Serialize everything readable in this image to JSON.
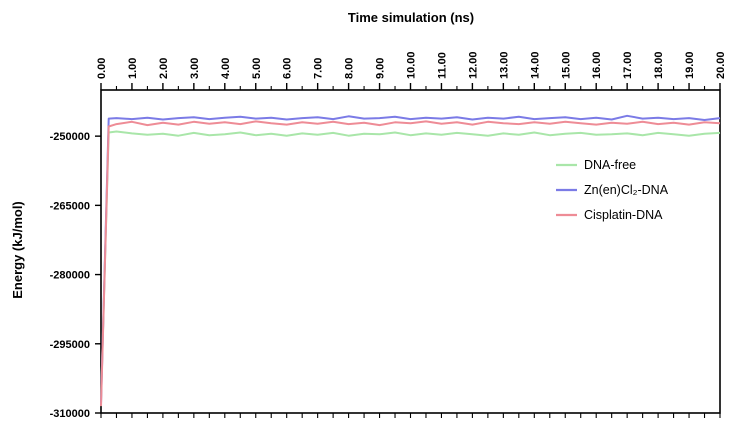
{
  "chart_data": {
    "type": "line",
    "title": "",
    "xlabel": "Time simulation (ns)",
    "ylabel": "Energy (kJ/mol)",
    "x_axis_position": "top",
    "xlim": [
      0,
      20
    ],
    "ylim": [
      -310000,
      -240000
    ],
    "x_ticks": [
      "0.00",
      "1.00",
      "2.00",
      "3.00",
      "4.00",
      "5.00",
      "6.00",
      "7.00",
      "8.00",
      "9.00",
      "10.00",
      "11.00",
      "12.00",
      "13.00",
      "14.00",
      "15.00",
      "16.00",
      "17.00",
      "18.00",
      "19.00",
      "20.00"
    ],
    "y_ticks": [
      "-250000",
      "-265000",
      "-280000",
      "-295000",
      "-310000"
    ],
    "legend_position": "right",
    "grid": false,
    "series": [
      {
        "name": "DNA-free",
        "color": "#a9e6a9",
        "x": [
          0.0,
          0.25,
          0.5,
          1.0,
          1.5,
          2.0,
          2.5,
          3.0,
          3.5,
          4.0,
          4.5,
          5.0,
          5.5,
          6.0,
          6.5,
          7.0,
          7.5,
          8.0,
          8.5,
          9.0,
          9.5,
          10.0,
          10.5,
          11.0,
          11.5,
          12.0,
          12.5,
          13.0,
          13.5,
          14.0,
          14.5,
          15.0,
          15.5,
          16.0,
          16.5,
          17.0,
          17.5,
          18.0,
          18.5,
          19.0,
          19.5,
          20.0
        ],
        "values": [
          -307200,
          -249200,
          -249000,
          -249400,
          -249700,
          -249500,
          -249900,
          -249300,
          -249800,
          -249600,
          -249200,
          -249800,
          -249500,
          -249900,
          -249400,
          -249700,
          -249300,
          -249900,
          -249500,
          -249600,
          -249200,
          -249800,
          -249400,
          -249700,
          -249300,
          -249600,
          -249900,
          -249400,
          -249700,
          -249200,
          -249800,
          -249500,
          -249300,
          -249700,
          -249600,
          -249400,
          -249800,
          -249300,
          -249600,
          -249900,
          -249500,
          -249300
        ]
      },
      {
        "name": "Zn(en)Cl₂-DNA",
        "color": "#7b7be6",
        "x": [
          0.0,
          0.25,
          0.5,
          1.0,
          1.5,
          2.0,
          2.5,
          3.0,
          3.5,
          4.0,
          4.5,
          5.0,
          5.5,
          6.0,
          6.5,
          7.0,
          7.5,
          8.0,
          8.5,
          9.0,
          9.5,
          10.0,
          10.5,
          11.0,
          11.5,
          12.0,
          12.5,
          13.0,
          13.5,
          14.0,
          14.5,
          15.0,
          15.5,
          16.0,
          16.5,
          17.0,
          17.5,
          18.0,
          18.5,
          19.0,
          19.5,
          20.0
        ],
        "values": [
          -308000,
          -246200,
          -246100,
          -246300,
          -246000,
          -246400,
          -246100,
          -245900,
          -246300,
          -246000,
          -245800,
          -246200,
          -246000,
          -246400,
          -246100,
          -245900,
          -246300,
          -245700,
          -246200,
          -246100,
          -245800,
          -246300,
          -246000,
          -246200,
          -245900,
          -246400,
          -246000,
          -246200,
          -245800,
          -246300,
          -246100,
          -245900,
          -246300,
          -246000,
          -246400,
          -245600,
          -246200,
          -246000,
          -246300,
          -246100,
          -246500,
          -246100
        ]
      },
      {
        "name": "Cisplatin-DNA",
        "color": "#ee8c96",
        "x": [
          0.0,
          0.25,
          0.5,
          1.0,
          1.5,
          2.0,
          2.5,
          3.0,
          3.5,
          4.0,
          4.5,
          5.0,
          5.5,
          6.0,
          6.5,
          7.0,
          7.5,
          8.0,
          8.5,
          9.0,
          9.5,
          10.0,
          10.5,
          11.0,
          11.5,
          12.0,
          12.5,
          13.0,
          13.5,
          14.0,
          14.5,
          15.0,
          15.5,
          16.0,
          16.5,
          17.0,
          17.5,
          18.0,
          18.5,
          19.0,
          19.5,
          20.0
        ],
        "values": [
          -308500,
          -247900,
          -247400,
          -246900,
          -247600,
          -247100,
          -247500,
          -246900,
          -247300,
          -247000,
          -247400,
          -246800,
          -247200,
          -247500,
          -247000,
          -247300,
          -246900,
          -247400,
          -247100,
          -247600,
          -247000,
          -247200,
          -246800,
          -247300,
          -247000,
          -247500,
          -246900,
          -247200,
          -247400,
          -247000,
          -247300,
          -246900,
          -247200,
          -247500,
          -247100,
          -247300,
          -246900,
          -247400,
          -247100,
          -247500,
          -247000,
          -247200
        ]
      }
    ]
  }
}
